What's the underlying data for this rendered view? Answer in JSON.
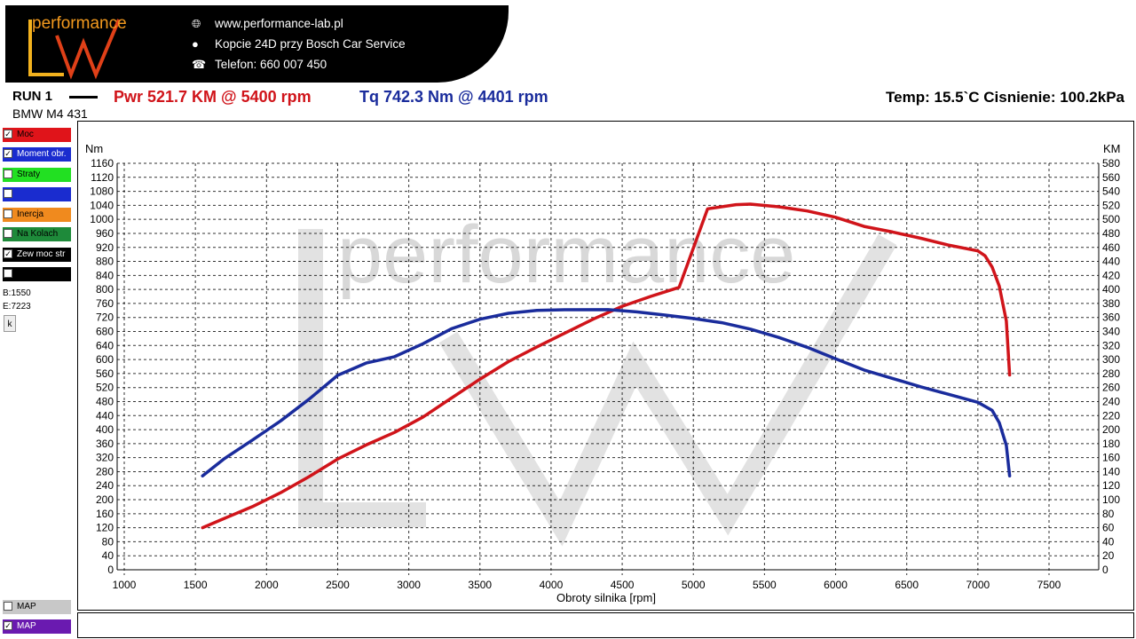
{
  "header": {
    "logo_text": "performance",
    "contacts": [
      {
        "icon": "globe-icon",
        "text": "www.performance-lab.pl"
      },
      {
        "icon": "location-pin-icon",
        "text": "Kopcie 24D przy Bosch Car Service"
      },
      {
        "icon": "phone-icon",
        "text": "Telefon: 660 007 450"
      }
    ]
  },
  "run": {
    "label": "RUN 1",
    "car": "BMW M4 431",
    "power": "Pwr  521.7 KM @ 5400 rpm",
    "torque": "Tq 742.3 Nm @ 4401 rpm",
    "env": "Temp: 15.5`C   Cisnienie: 100.2kPa"
  },
  "panel": {
    "items": [
      {
        "label": "Moc",
        "checked": true,
        "color": "#e0141a"
      },
      {
        "label": "Moment obr.",
        "checked": true,
        "color": "#1a2ccf"
      },
      {
        "label": "Straty",
        "checked": false,
        "color": "#22e022"
      },
      {
        "label": "",
        "checked": false,
        "color": "#1a2ccf"
      },
      {
        "label": "Inercja",
        "checked": false,
        "color": "#f08a1e"
      },
      {
        "label": "Na Kolach",
        "checked": false,
        "color": "#1e8a3a"
      },
      {
        "label": "Zew moc str",
        "checked": true,
        "color": "#000000"
      },
      {
        "label": "",
        "checked": false,
        "color": "#000000"
      }
    ],
    "begin": "B:1550",
    "end": "E:7223",
    "k_button": "k",
    "bottom_items": [
      {
        "label": "MAP",
        "checked": false,
        "color": "#c8c8c8"
      },
      {
        "label": "MAP",
        "checked": true,
        "color": "#6a1ab0"
      }
    ]
  },
  "chart_data": {
    "type": "line",
    "xlabel": "Obroty silnika [rpm]",
    "ylabel_left": "Nm",
    "ylabel_right": "KM",
    "xlim": [
      1000,
      7500
    ],
    "ylim_left": [
      0,
      1160
    ],
    "ylim_right": [
      0,
      580
    ],
    "xticks": [
      1000,
      1500,
      2000,
      2500,
      3000,
      3500,
      4000,
      4500,
      5000,
      5500,
      6000,
      6500,
      7000,
      7500
    ],
    "grid": true,
    "watermark": "performance",
    "series": [
      {
        "name": "Moc",
        "axis": "right",
        "color": "#d0141a",
        "x": [
          1550,
          1700,
          1900,
          2100,
          2300,
          2500,
          2700,
          2900,
          3100,
          3300,
          3500,
          3700,
          3900,
          4100,
          4300,
          4500,
          4700,
          4900,
          5100,
          5300,
          5400,
          5600,
          5800,
          6000,
          6200,
          6400,
          6600,
          6800,
          7000,
          7050,
          7100,
          7150,
          7200,
          7223
        ],
        "y": [
          60,
          73,
          90,
          110,
          133,
          158,
          178,
          196,
          218,
          245,
          272,
          297,
          318,
          338,
          358,
          376,
          390,
          403,
          515,
          521,
          521.7,
          518,
          512,
          503,
          490,
          482,
          473,
          463,
          455,
          448,
          432,
          405,
          355,
          278
        ]
      },
      {
        "name": "Moment obr.",
        "axis": "left",
        "color": "#1a2c9c",
        "x": [
          1550,
          1700,
          1900,
          2100,
          2300,
          2500,
          2700,
          2900,
          3100,
          3300,
          3500,
          3700,
          3900,
          4100,
          4401,
          4600,
          4800,
          5000,
          5200,
          5400,
          5600,
          5800,
          6000,
          6200,
          6400,
          6600,
          6800,
          7000,
          7100,
          7150,
          7200,
          7223
        ],
        "y": [
          268,
          316,
          370,
          425,
          487,
          555,
          590,
          608,
          645,
          688,
          715,
          732,
          740,
          742,
          742.3,
          736,
          727,
          717,
          705,
          687,
          663,
          635,
          602,
          570,
          546,
          522,
          500,
          478,
          455,
          420,
          355,
          268
        ]
      }
    ]
  }
}
